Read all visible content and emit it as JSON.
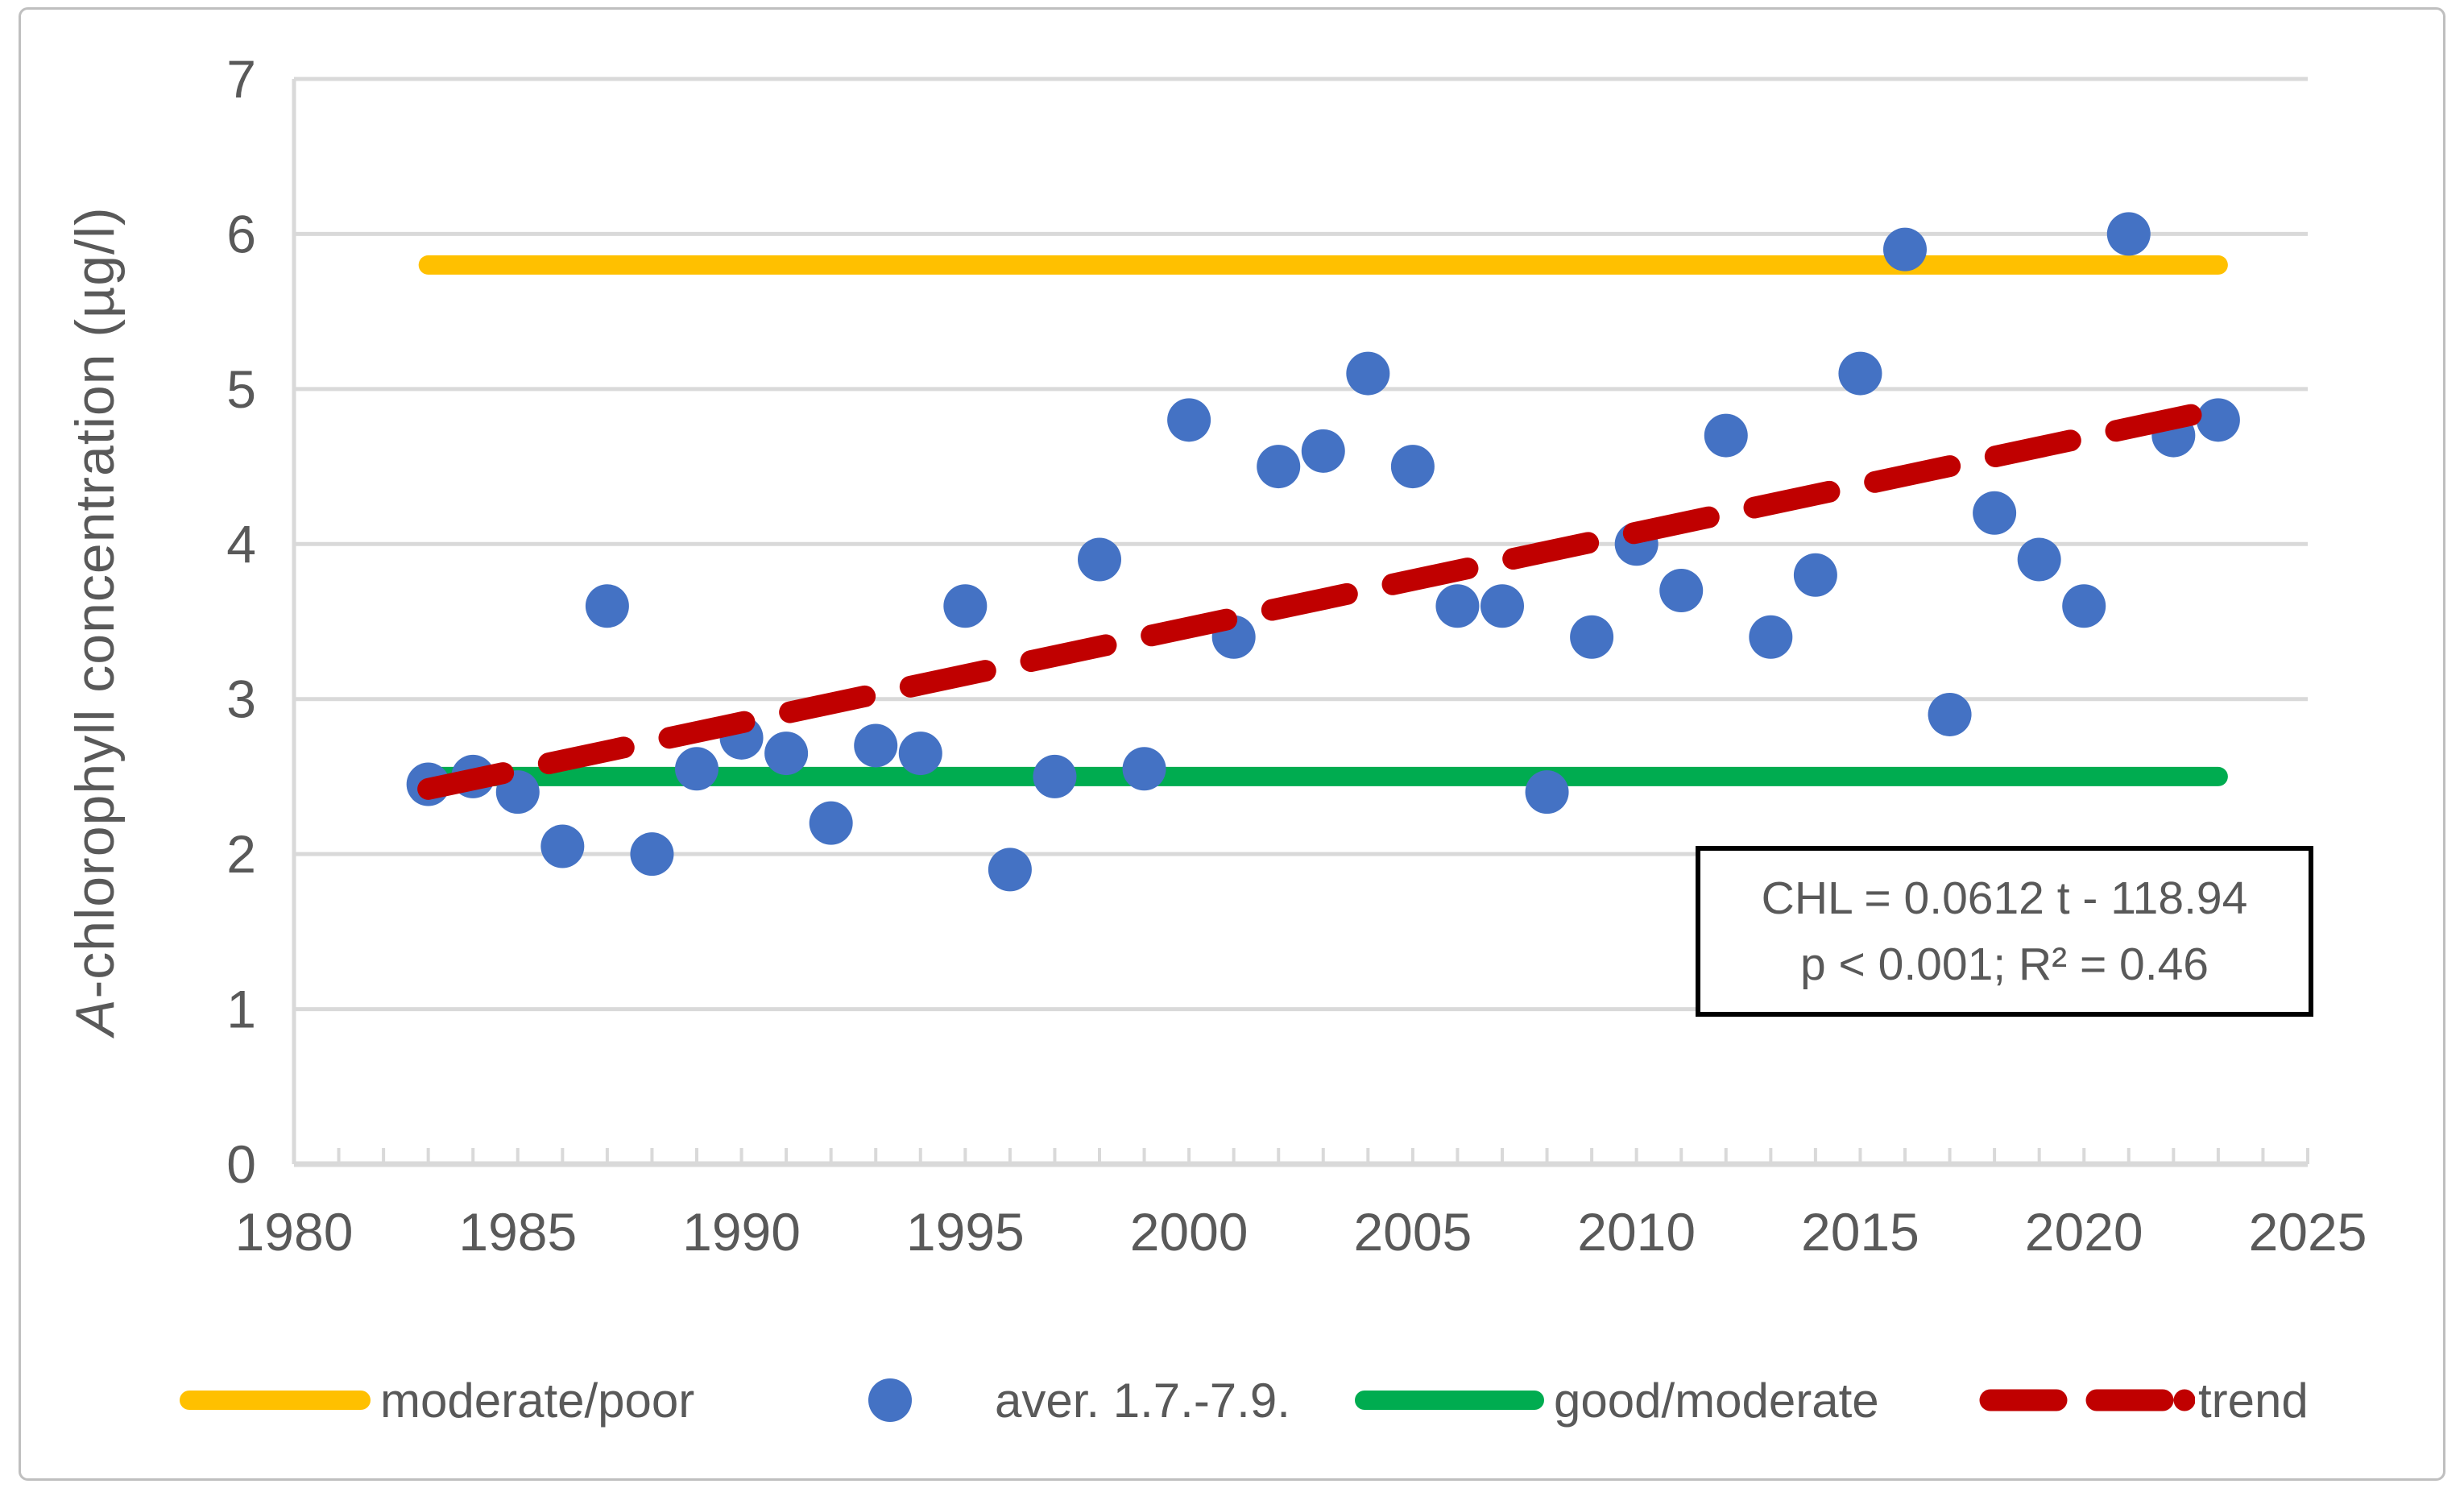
{
  "figure": {
    "background": "#FFFFFF",
    "border_color": "#BFBFBF"
  },
  "chart_data": {
    "type": "scatter",
    "title": "",
    "xlabel": "",
    "ylabel_italic": "A",
    "ylabel_rest": "-chlorophyll concentration (µg/l)",
    "xlim": [
      1980,
      2025
    ],
    "ylim": [
      0,
      7
    ],
    "x_ticks": [
      1980,
      1985,
      1990,
      1995,
      2000,
      2005,
      2010,
      2015,
      2020,
      2025
    ],
    "y_ticks": [
      0,
      1,
      2,
      3,
      4,
      5,
      6,
      7
    ],
    "grid": true,
    "grid_color": "#D9D9D9",
    "text_color": "#595959",
    "legend_position": "bottom",
    "scatter": {
      "name": "aver. 1.7.-7.9.",
      "color": "#4472C4",
      "years": [
        1983,
        1984,
        1985,
        1986,
        1987,
        1988,
        1989,
        1990,
        1991,
        1992,
        1993,
        1994,
        1995,
        1996,
        1997,
        1998,
        1999,
        2000,
        2001,
        2002,
        2003,
        2004,
        2005,
        2006,
        2007,
        2008,
        2009,
        2010,
        2011,
        2012,
        2013,
        2014,
        2015,
        2016,
        2017,
        2018,
        2019,
        2020,
        2021,
        2022,
        2023
      ],
      "values": [
        2.45,
        2.5,
        2.4,
        2.05,
        3.6,
        2.0,
        2.55,
        2.75,
        2.65,
        2.2,
        2.7,
        2.65,
        3.6,
        1.9,
        2.5,
        3.9,
        2.55,
        4.8,
        3.4,
        4.5,
        4.6,
        5.1,
        4.5,
        3.6,
        3.6,
        2.4,
        3.4,
        4.0,
        3.7,
        4.7,
        3.4,
        3.8,
        5.1,
        5.9,
        2.9,
        4.2,
        3.9,
        3.6,
        6.0,
        4.7,
        4.8
      ]
    },
    "threshold_lines": [
      {
        "name": "moderate/poor",
        "color": "#FFC000",
        "value": 5.8,
        "x_start": 1983,
        "x_end": 2023
      },
      {
        "name": "good/moderate",
        "color": "#00AC50",
        "value": 2.5,
        "x_start": 1983,
        "x_end": 2023
      }
    ],
    "trend": {
      "name": "trend",
      "color": "#C00000",
      "style": "dashed",
      "points": [
        [
          1983,
          2.42
        ],
        [
          2023,
          4.87
        ]
      ]
    },
    "annotation": {
      "line1": "CHL = 0.0612 t - 118.94",
      "line2": "p < 0.001; R² = 0.46"
    }
  }
}
